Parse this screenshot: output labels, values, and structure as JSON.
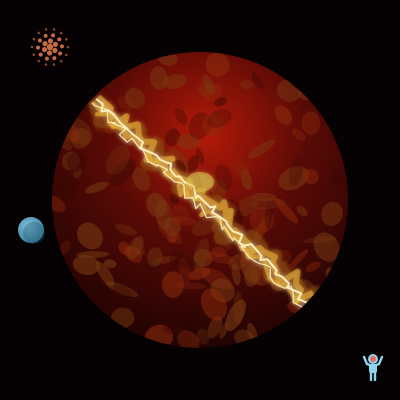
{
  "scene": {
    "background_color": "#060102",
    "planet": {
      "name": "red-planet",
      "base_color": "#5a0a06",
      "core_color": "#b21a08",
      "rim_color": "#1c0302",
      "crack_color": "#fff3c2",
      "crack_glow_color": "#e8b43a"
    },
    "moon": {
      "name": "blue-moon",
      "color": "#3a7fa0",
      "highlight_color": "#7fc0d8"
    },
    "star_cluster": {
      "name": "dot-cluster",
      "color": "#d9774a"
    },
    "player_icon": {
      "name": "alien-figure-icon",
      "body_color": "#8fd4ee",
      "head_color": "#e86b5a"
    }
  }
}
